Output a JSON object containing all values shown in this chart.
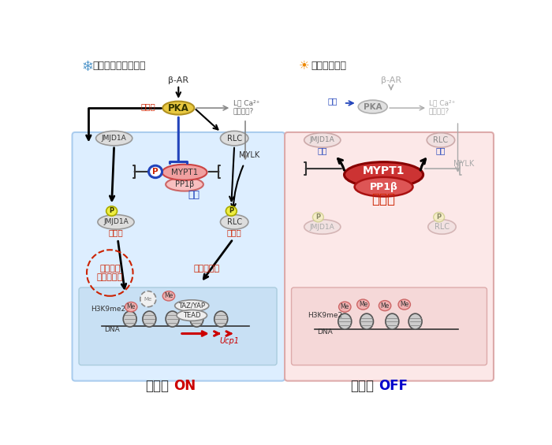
{
  "fig_width": 7.0,
  "fig_height": 5.65,
  "bg_color": "#ffffff",
  "left_box_color": "#ddeeff",
  "right_box_color": "#fce8e8",
  "left_title": "慢性寒冷刺激条件下",
  "right_title": "非寒冷環境下",
  "bottom_left_label": "熱産生",
  "bottom_left_on": "ON",
  "bottom_right_label": "熱産生",
  "bottom_right_off": "OFF",
  "on_color": "#cc0000",
  "off_color": "#0000cc"
}
